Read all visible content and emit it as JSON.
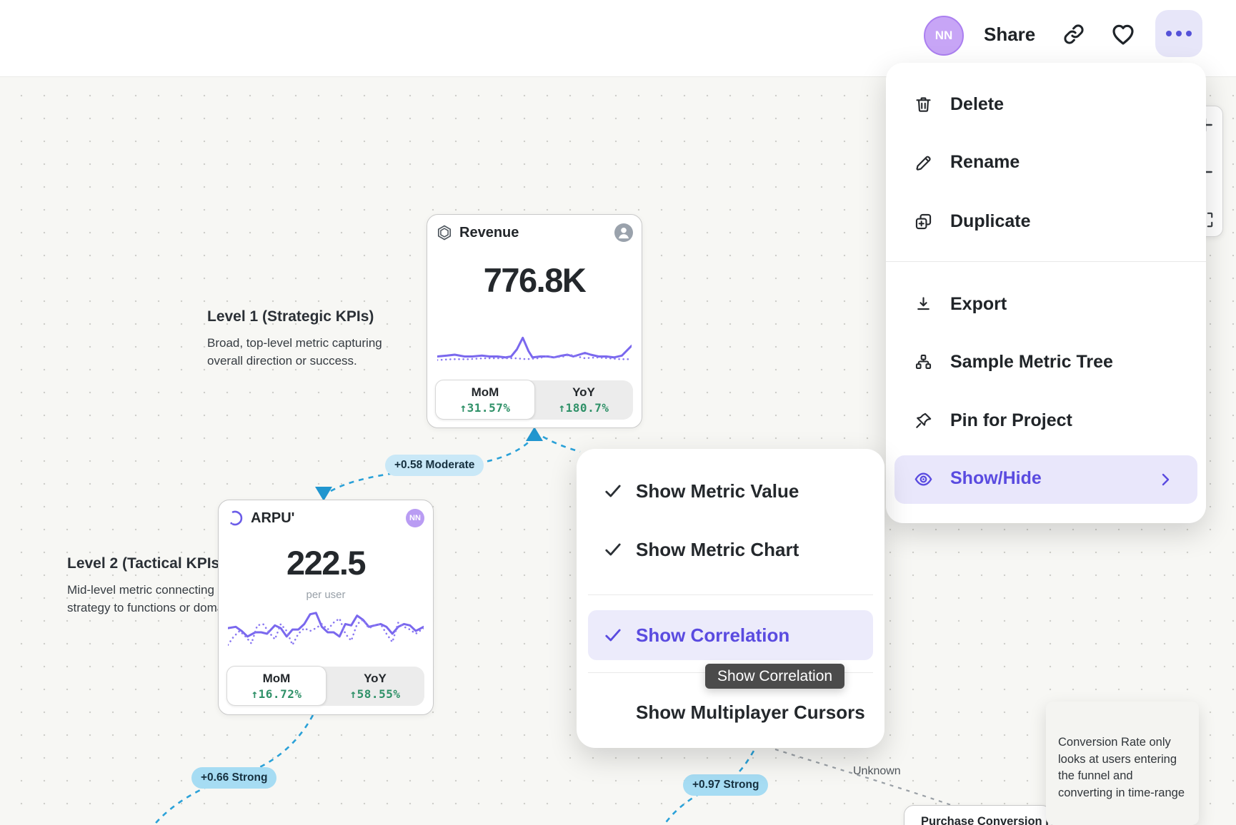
{
  "header": {
    "avatar_initials": "NN",
    "share": "Share"
  },
  "context_menu": {
    "items": [
      {
        "icon": "trash",
        "label": "Delete"
      },
      {
        "icon": "pencil",
        "label": "Rename"
      },
      {
        "icon": "duplicate",
        "label": "Duplicate"
      },
      {
        "icon": "download",
        "label": "Export"
      },
      {
        "icon": "metric-tree",
        "label": "Sample Metric Tree"
      },
      {
        "icon": "pin",
        "label": "Pin for Project"
      }
    ],
    "show_hide": {
      "icon": "eye",
      "label": "Show/Hide"
    }
  },
  "view_menu": {
    "items": [
      {
        "label": "Show Metric Value",
        "checked": true,
        "highlighted": false
      },
      {
        "label": "Show Metric Chart",
        "checked": true,
        "highlighted": false
      },
      {
        "label": "Show Correlation",
        "checked": true,
        "highlighted": true
      },
      {
        "label": "Show Multiplayer Cursors",
        "checked": false,
        "highlighted": false
      }
    ],
    "tooltip": "Show Correlation"
  },
  "canvas": {
    "levels": [
      {
        "title": "Level 1 (Strategic KPIs)",
        "description": [
          "Broad, top-level metric capturing",
          "overall direction or success."
        ]
      },
      {
        "title": "Level 2 (Tactical KPIs",
        "description": [
          "Mid-level metric connecting",
          "strategy to functions or doma"
        ]
      }
    ],
    "cards": [
      {
        "title": "Revenue",
        "value": "776.8K",
        "avatar": "person",
        "tabs": [
          {
            "label": "MoM",
            "value": "↑31.57%",
            "selected": true
          },
          {
            "label": "YoY",
            "value": "↑180.7%",
            "selected": false
          }
        ]
      },
      {
        "title": "ARPU'",
        "value": "222.5",
        "unit": "per user",
        "avatar": "NN",
        "tabs": [
          {
            "label": "MoM",
            "value": "↑16.72%",
            "selected": true
          },
          {
            "label": "YoY",
            "value": "↑58.55%",
            "selected": false
          }
        ]
      },
      {
        "title": "Purchase Conversion R"
      }
    ],
    "correlations": [
      {
        "label": "+0.58 Moderate",
        "strength": "moderate"
      },
      {
        "label": "+0.66 Strong",
        "strength": "strong"
      },
      {
        "label": "+0.97 Strong",
        "strength": "strong"
      },
      {
        "label": "Unknown",
        "strength": "unknown"
      }
    ],
    "note_tooltip": [
      "Conversion Rate only",
      "looks at users entering",
      "the funnel and",
      "converting in time-range"
    ]
  },
  "chart_data": [
    {
      "type": "line",
      "card": "Revenue",
      "series": [
        {
          "name": "current",
          "style": "solid",
          "points": [
            [
              0,
              26
            ],
            [
              5,
              25
            ],
            [
              9,
              24
            ],
            [
              14,
              26
            ],
            [
              18,
              26
            ],
            [
              23,
              25
            ],
            [
              27,
              26
            ],
            [
              31,
              26
            ],
            [
              35,
              27
            ],
            [
              38,
              26
            ],
            [
              41,
              18
            ],
            [
              44,
              5
            ],
            [
              47,
              20
            ],
            [
              49,
              27
            ],
            [
              53,
              26
            ],
            [
              57,
              26
            ],
            [
              60,
              27
            ],
            [
              64,
              25
            ],
            [
              67,
              24
            ],
            [
              70,
              26
            ],
            [
              73,
              24
            ],
            [
              76,
              22
            ],
            [
              79,
              24
            ],
            [
              83,
              26
            ],
            [
              87,
              26
            ],
            [
              91,
              27
            ],
            [
              95,
              25
            ],
            [
              100,
              14
            ]
          ]
        },
        {
          "name": "previous",
          "style": "dotted",
          "points": [
            [
              0,
              30
            ],
            [
              8,
              29
            ],
            [
              16,
              29
            ],
            [
              24,
              28
            ],
            [
              32,
              28
            ],
            [
              40,
              28
            ],
            [
              46,
              29
            ],
            [
              52,
              28
            ],
            [
              56,
              26
            ],
            [
              60,
              27
            ],
            [
              65,
              26
            ],
            [
              68,
              24
            ],
            [
              72,
              26
            ],
            [
              76,
              28
            ],
            [
              82,
              27
            ],
            [
              88,
              28
            ],
            [
              94,
              29
            ],
            [
              100,
              29
            ]
          ]
        }
      ]
    },
    {
      "type": "line",
      "card": "ARPU'",
      "series": [
        {
          "name": "current",
          "style": "solid",
          "points": [
            [
              0,
              16
            ],
            [
              4,
              15
            ],
            [
              7,
              18
            ],
            [
              10,
              22
            ],
            [
              14,
              19
            ],
            [
              17,
              19
            ],
            [
              20,
              20
            ],
            [
              24,
              14
            ],
            [
              27,
              16
            ],
            [
              30,
              22
            ],
            [
              33,
              17
            ],
            [
              36,
              17
            ],
            [
              39,
              13
            ],
            [
              42,
              6
            ],
            [
              45,
              5
            ],
            [
              48,
              15
            ],
            [
              51,
              19
            ],
            [
              54,
              19
            ],
            [
              57,
              22
            ],
            [
              60,
              13
            ],
            [
              63,
              14
            ],
            [
              66,
              7
            ],
            [
              69,
              10
            ],
            [
              72,
              15
            ],
            [
              75,
              14
            ],
            [
              78,
              13
            ],
            [
              81,
              15
            ],
            [
              84,
              20
            ],
            [
              87,
              15
            ],
            [
              90,
              13
            ],
            [
              93,
              14
            ],
            [
              96,
              18
            ],
            [
              100,
              15
            ]
          ]
        },
        {
          "name": "previous",
          "style": "dotted",
          "points": [
            [
              0,
              28
            ],
            [
              3,
              22
            ],
            [
              6,
              18
            ],
            [
              9,
              22
            ],
            [
              12,
              27
            ],
            [
              15,
              14
            ],
            [
              18,
              13
            ],
            [
              21,
              19
            ],
            [
              24,
              24
            ],
            [
              27,
              13
            ],
            [
              30,
              18
            ],
            [
              33,
              28
            ],
            [
              36,
              20
            ],
            [
              39,
              16
            ],
            [
              42,
              18
            ],
            [
              45,
              16
            ],
            [
              48,
              13
            ],
            [
              51,
              17
            ],
            [
              54,
              12
            ],
            [
              57,
              9
            ],
            [
              60,
              20
            ],
            [
              63,
              25
            ],
            [
              66,
              13
            ],
            [
              69,
              10
            ],
            [
              72,
              16
            ],
            [
              75,
              14
            ],
            [
              78,
              13
            ],
            [
              81,
              20
            ],
            [
              84,
              26
            ],
            [
              87,
              12
            ],
            [
              90,
              15
            ],
            [
              93,
              17
            ],
            [
              96,
              20
            ],
            [
              100,
              16
            ]
          ]
        }
      ]
    }
  ],
  "colors": {
    "accent_purple": "#5a4be0",
    "accent_bg": "#e9e7fb",
    "chart_line": "#7a68ee",
    "positive_green": "#2f9168",
    "edge_blue": "#2aa1d8",
    "badge_moderate_bg": "#c9e8f7",
    "badge_strong_bg": "#a6dcf3",
    "canvas_bg": "#f7f7f4",
    "tooltip_dark_bg": "#4b4b4b",
    "avatar_purple": "#c7a5f6"
  }
}
